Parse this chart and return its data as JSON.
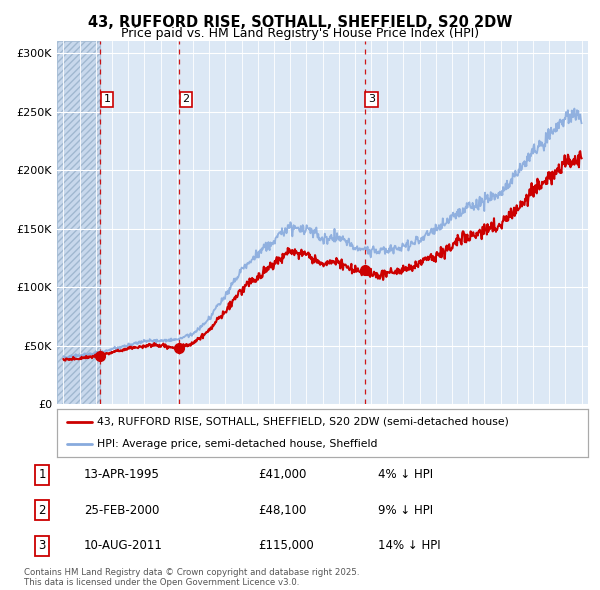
{
  "title": "43, RUFFORD RISE, SOTHALL, SHEFFIELD, S20 2DW",
  "subtitle": "Price paid vs. HM Land Registry's House Price Index (HPI)",
  "xlim": [
    1992.6,
    2025.4
  ],
  "ylim": [
    0,
    310000
  ],
  "yticks": [
    0,
    50000,
    100000,
    150000,
    200000,
    250000,
    300000
  ],
  "ytick_labels": [
    "£0",
    "£50K",
    "£100K",
    "£150K",
    "£200K",
    "£250K",
    "£300K"
  ],
  "background_color": "#dce8f5",
  "hatch_region_end": 1995.28,
  "grid_color": "#ffffff",
  "sale_dates": [
    1995.28,
    2000.15,
    2011.61
  ],
  "sale_prices": [
    41000,
    48100,
    115000
  ],
  "sale_labels": [
    "1",
    "2",
    "3"
  ],
  "property_line_color": "#cc0000",
  "hpi_line_color": "#88aadd",
  "legend_entries": [
    "43, RUFFORD RISE, SOTHALL, SHEFFIELD, S20 2DW (semi-detached house)",
    "HPI: Average price, semi-detached house, Sheffield"
  ],
  "table_rows": [
    {
      "num": "1",
      "date": "13-APR-1995",
      "price": "£41,000",
      "hpi": "4% ↓ HPI"
    },
    {
      "num": "2",
      "date": "25-FEB-2000",
      "price": "£48,100",
      "hpi": "9% ↓ HPI"
    },
    {
      "num": "3",
      "date": "10-AUG-2011",
      "price": "£115,000",
      "hpi": "14% ↓ HPI"
    }
  ],
  "footnote": "Contains HM Land Registry data © Crown copyright and database right 2025.\nThis data is licensed under the Open Government Licence v3.0.",
  "title_fontsize": 10.5,
  "subtitle_fontsize": 9
}
